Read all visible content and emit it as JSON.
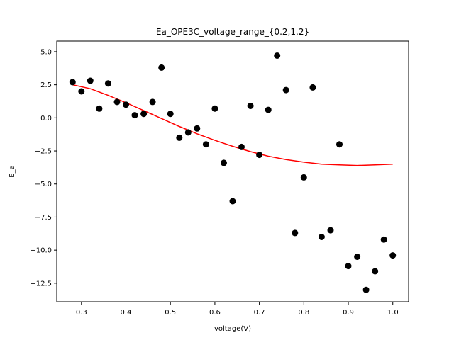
{
  "chart_data": {
    "type": "scatter",
    "title": "Ea_OPE3C_voltage_range_{0.2,1.2}",
    "xlabel": "voltage(V)",
    "ylabel": "E_a",
    "xlim": [
      0.2445,
      1.0355
    ],
    "ylim": [
      -13.9,
      5.8
    ],
    "grid": false,
    "x_ticks": [
      0.3,
      0.4,
      0.5,
      0.6,
      0.7,
      0.8,
      0.9,
      1.0
    ],
    "x_tick_labels": [
      "0.3",
      "0.4",
      "0.5",
      "0.6",
      "0.7",
      "0.8",
      "0.9",
      "1.0"
    ],
    "y_ticks": [
      5.0,
      2.5,
      0.0,
      -2.5,
      -5.0,
      -7.5,
      -10.0,
      -12.5
    ],
    "y_tick_labels": [
      "5.0",
      "2.5",
      "0.0",
      "−2.5",
      "−5.0",
      "−7.5",
      "−10.0",
      "−12.5"
    ],
    "series": [
      {
        "kind": "scatter",
        "color": "#000000",
        "x": [
          0.28,
          0.3,
          0.32,
          0.34,
          0.36,
          0.38,
          0.4,
          0.42,
          0.44,
          0.46,
          0.48,
          0.5,
          0.52,
          0.54,
          0.56,
          0.58,
          0.6,
          0.62,
          0.64,
          0.66,
          0.68,
          0.7,
          0.72,
          0.74,
          0.76,
          0.78,
          0.8,
          0.82,
          0.84,
          0.86,
          0.88,
          0.9,
          0.92,
          0.94,
          0.96,
          0.98,
          1.0
        ],
        "y": [
          2.7,
          2.0,
          2.8,
          0.7,
          2.6,
          1.2,
          1.0,
          0.2,
          0.3,
          1.2,
          3.8,
          0.3,
          -1.5,
          -1.1,
          -0.8,
          -2.0,
          0.7,
          -3.4,
          -6.3,
          -2.2,
          0.9,
          -2.8,
          0.6,
          4.7,
          2.1,
          -8.7,
          -4.5,
          2.3,
          -9.0,
          -8.5,
          -2.0,
          -11.2,
          -10.5,
          -13.0,
          -11.6,
          -9.2,
          -10.4
        ]
      },
      {
        "kind": "line",
        "color": "#ff0000",
        "x": [
          0.28,
          0.32,
          0.36,
          0.4,
          0.44,
          0.48,
          0.52,
          0.56,
          0.6,
          0.64,
          0.68,
          0.72,
          0.76,
          0.8,
          0.84,
          0.88,
          0.92,
          0.96,
          1.0
        ],
        "y": [
          2.5,
          2.2,
          1.7,
          1.15,
          0.55,
          -0.05,
          -0.65,
          -1.2,
          -1.7,
          -2.15,
          -2.55,
          -2.9,
          -3.15,
          -3.35,
          -3.5,
          -3.55,
          -3.6,
          -3.55,
          -3.5
        ]
      }
    ]
  }
}
